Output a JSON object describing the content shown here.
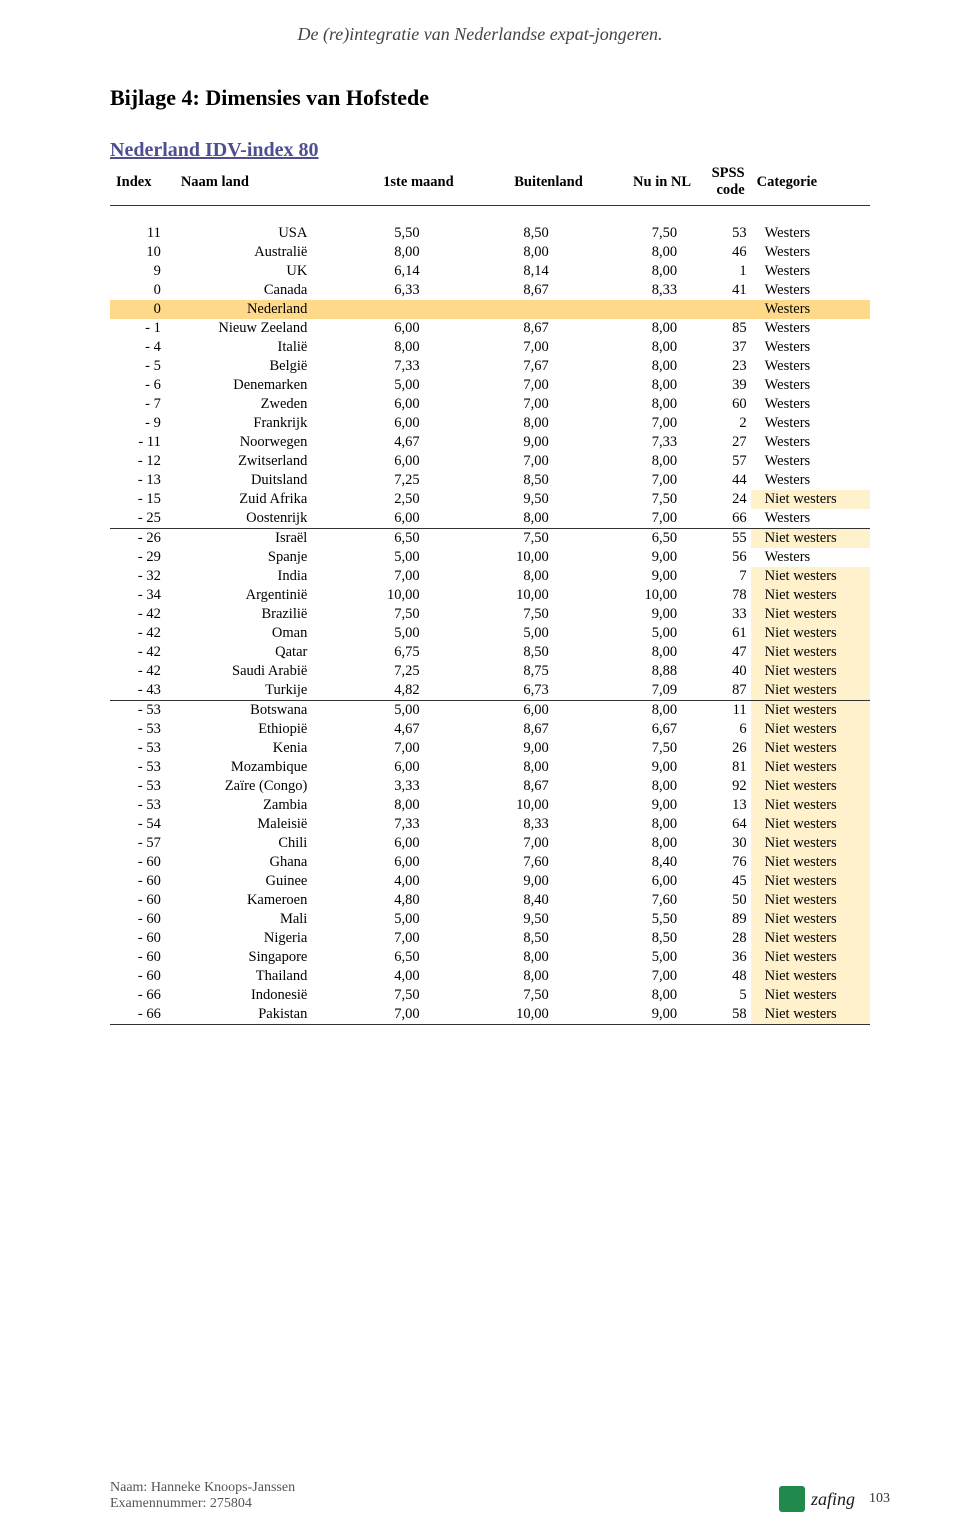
{
  "header": "De (re)integratie van Nederlandse expat-jongeren.",
  "section_title": "Bijlage 4: Dimensies van Hofstede",
  "table_title": "Nederland IDV-index 80",
  "columns": [
    "Index",
    "Naam land",
    "1ste maand",
    "Buitenland",
    "Nu in NL",
    "SPSS code",
    "Categorie"
  ],
  "style": {
    "westers_bg": "#ffffff",
    "niet_westers_bg": "#fff1cc",
    "nederland_row_bg": "#ffd98a",
    "rule_color": "#333333",
    "title_color": "#4f4f8f"
  },
  "groups": [
    [
      {
        "idx": "11",
        "name": "USA",
        "m1": "5,50",
        "m2": "8,50",
        "m3": "7,50",
        "spss": "53",
        "cat": "Westers",
        "hl": ""
      },
      {
        "idx": "10",
        "name": "Australië",
        "m1": "8,00",
        "m2": "8,00",
        "m3": "8,00",
        "spss": "46",
        "cat": "Westers",
        "hl": ""
      },
      {
        "idx": "9",
        "name": "UK",
        "m1": "6,14",
        "m2": "8,14",
        "m3": "8,00",
        "spss": "1",
        "cat": "Westers",
        "hl": ""
      },
      {
        "idx": "0",
        "name": "Canada",
        "m1": "6,33",
        "m2": "8,67",
        "m3": "8,33",
        "spss": "41",
        "cat": "Westers",
        "hl": ""
      },
      {
        "idx": "0",
        "name": "Nederland",
        "m1": "",
        "m2": "",
        "m3": "",
        "spss": "",
        "cat": "Westers",
        "hl": "row"
      },
      {
        "idx": "- 1",
        "name": "Nieuw Zeeland",
        "m1": "6,00",
        "m2": "8,67",
        "m3": "8,00",
        "spss": "85",
        "cat": "Westers",
        "hl": ""
      },
      {
        "idx": "- 4",
        "name": "Italië",
        "m1": "8,00",
        "m2": "7,00",
        "m3": "8,00",
        "spss": "37",
        "cat": "Westers",
        "hl": ""
      },
      {
        "idx": "- 5",
        "name": "België",
        "m1": "7,33",
        "m2": "7,67",
        "m3": "8,00",
        "spss": "23",
        "cat": "Westers",
        "hl": ""
      },
      {
        "idx": "- 6",
        "name": "Denemarken",
        "m1": "5,00",
        "m2": "7,00",
        "m3": "8,00",
        "spss": "39",
        "cat": "Westers",
        "hl": ""
      },
      {
        "idx": "- 7",
        "name": "Zweden",
        "m1": "6,00",
        "m2": "7,00",
        "m3": "8,00",
        "spss": "60",
        "cat": "Westers",
        "hl": ""
      },
      {
        "idx": "- 9",
        "name": "Frankrijk",
        "m1": "6,00",
        "m2": "8,00",
        "m3": "7,00",
        "spss": "2",
        "cat": "Westers",
        "hl": ""
      },
      {
        "idx": "- 11",
        "name": "Noorwegen",
        "m1": "4,67",
        "m2": "9,00",
        "m3": "7,33",
        "spss": "27",
        "cat": "Westers",
        "hl": ""
      },
      {
        "idx": "- 12",
        "name": "Zwitserland",
        "m1": "6,00",
        "m2": "7,00",
        "m3": "8,00",
        "spss": "57",
        "cat": "Westers",
        "hl": ""
      },
      {
        "idx": "- 13",
        "name": "Duitsland",
        "m1": "7,25",
        "m2": "8,50",
        "m3": "7,00",
        "spss": "44",
        "cat": "Westers",
        "hl": ""
      },
      {
        "idx": "- 15",
        "name": "Zuid Afrika",
        "m1": "2,50",
        "m2": "9,50",
        "m3": "7,50",
        "spss": "24",
        "cat": "Niet westers",
        "hl": "cat"
      },
      {
        "idx": "- 25",
        "name": "Oostenrijk",
        "m1": "6,00",
        "m2": "8,00",
        "m3": "7,00",
        "spss": "66",
        "cat": "Westers",
        "hl": ""
      }
    ],
    [
      {
        "idx": "- 26",
        "name": "Israël",
        "m1": "6,50",
        "m2": "7,50",
        "m3": "6,50",
        "spss": "55",
        "cat": "Niet westers",
        "hl": "cat"
      },
      {
        "idx": "- 29",
        "name": "Spanje",
        "m1": "5,00",
        "m2": "10,00",
        "m3": "9,00",
        "spss": "56",
        "cat": "Westers",
        "hl": ""
      },
      {
        "idx": "- 32",
        "name": "India",
        "m1": "7,00",
        "m2": "8,00",
        "m3": "9,00",
        "spss": "7",
        "cat": "Niet westers",
        "hl": "cat"
      },
      {
        "idx": "- 34",
        "name": "Argentinië",
        "m1": "10,00",
        "m2": "10,00",
        "m3": "10,00",
        "spss": "78",
        "cat": "Niet westers",
        "hl": "cat"
      },
      {
        "idx": "- 42",
        "name": "Brazilië",
        "m1": "7,50",
        "m2": "7,50",
        "m3": "9,00",
        "spss": "33",
        "cat": "Niet westers",
        "hl": "cat"
      },
      {
        "idx": "- 42",
        "name": "Oman",
        "m1": "5,00",
        "m2": "5,00",
        "m3": "5,00",
        "spss": "61",
        "cat": "Niet westers",
        "hl": "cat"
      },
      {
        "idx": "- 42",
        "name": "Qatar",
        "m1": "6,75",
        "m2": "8,50",
        "m3": "8,00",
        "spss": "47",
        "cat": "Niet westers",
        "hl": "cat"
      },
      {
        "idx": "- 42",
        "name": "Saudi Arabië",
        "m1": "7,25",
        "m2": "8,75",
        "m3": "8,88",
        "spss": "40",
        "cat": "Niet westers",
        "hl": "cat"
      },
      {
        "idx": "- 43",
        "name": "Turkije",
        "m1": "4,82",
        "m2": "6,73",
        "m3": "7,09",
        "spss": "87",
        "cat": "Niet westers",
        "hl": "cat"
      }
    ],
    [
      {
        "idx": "- 53",
        "name": "Botswana",
        "m1": "5,00",
        "m2": "6,00",
        "m3": "8,00",
        "spss": "11",
        "cat": "Niet westers",
        "hl": "cat"
      },
      {
        "idx": "- 53",
        "name": "Ethiopië",
        "m1": "4,67",
        "m2": "8,67",
        "m3": "6,67",
        "spss": "6",
        "cat": "Niet westers",
        "hl": "cat"
      },
      {
        "idx": "- 53",
        "name": "Kenia",
        "m1": "7,00",
        "m2": "9,00",
        "m3": "7,50",
        "spss": "26",
        "cat": "Niet westers",
        "hl": "cat"
      },
      {
        "idx": "- 53",
        "name": "Mozambique",
        "m1": "6,00",
        "m2": "8,00",
        "m3": "9,00",
        "spss": "81",
        "cat": "Niet westers",
        "hl": "cat"
      },
      {
        "idx": "- 53",
        "name": "Zaïre (Congo)",
        "m1": "3,33",
        "m2": "8,67",
        "m3": "8,00",
        "spss": "92",
        "cat": "Niet westers",
        "hl": "cat"
      },
      {
        "idx": "- 53",
        "name": "Zambia",
        "m1": "8,00",
        "m2": "10,00",
        "m3": "9,00",
        "spss": "13",
        "cat": "Niet westers",
        "hl": "cat"
      },
      {
        "idx": "- 54",
        "name": "Maleisië",
        "m1": "7,33",
        "m2": "8,33",
        "m3": "8,00",
        "spss": "64",
        "cat": "Niet westers",
        "hl": "cat"
      },
      {
        "idx": "- 57",
        "name": "Chili",
        "m1": "6,00",
        "m2": "7,00",
        "m3": "8,00",
        "spss": "30",
        "cat": "Niet westers",
        "hl": "cat"
      },
      {
        "idx": "- 60",
        "name": "Ghana",
        "m1": "6,00",
        "m2": "7,60",
        "m3": "8,40",
        "spss": "76",
        "cat": "Niet westers",
        "hl": "cat"
      },
      {
        "idx": "- 60",
        "name": "Guinee",
        "m1": "4,00",
        "m2": "9,00",
        "m3": "6,00",
        "spss": "45",
        "cat": "Niet westers",
        "hl": "cat"
      },
      {
        "idx": "- 60",
        "name": "Kameroen",
        "m1": "4,80",
        "m2": "8,40",
        "m3": "7,60",
        "spss": "50",
        "cat": "Niet westers",
        "hl": "cat"
      },
      {
        "idx": "- 60",
        "name": "Mali",
        "m1": "5,00",
        "m2": "9,50",
        "m3": "5,50",
        "spss": "89",
        "cat": "Niet westers",
        "hl": "cat"
      },
      {
        "idx": "- 60",
        "name": "Nigeria",
        "m1": "7,00",
        "m2": "8,50",
        "m3": "8,50",
        "spss": "28",
        "cat": "Niet westers",
        "hl": "cat"
      },
      {
        "idx": "- 60",
        "name": "Singapore",
        "m1": "6,50",
        "m2": "8,00",
        "m3": "5,00",
        "spss": "36",
        "cat": "Niet westers",
        "hl": "cat"
      },
      {
        "idx": "- 60",
        "name": "Thailand",
        "m1": "4,00",
        "m2": "8,00",
        "m3": "7,00",
        "spss": "48",
        "cat": "Niet westers",
        "hl": "cat"
      },
      {
        "idx": "- 66",
        "name": "Indonesië",
        "m1": "7,50",
        "m2": "7,50",
        "m3": "8,00",
        "spss": "5",
        "cat": "Niet westers",
        "hl": "cat"
      },
      {
        "idx": "- 66",
        "name": "Pakistan",
        "m1": "7,00",
        "m2": "10,00",
        "m3": "9,00",
        "spss": "58",
        "cat": "Niet westers",
        "hl": "cat"
      }
    ]
  ],
  "footer": {
    "name_label": "Naam: Hanneke Knoops-Janssen",
    "exam_label": "Examennummer: 275804",
    "page": "103",
    "uni": "zafing"
  }
}
